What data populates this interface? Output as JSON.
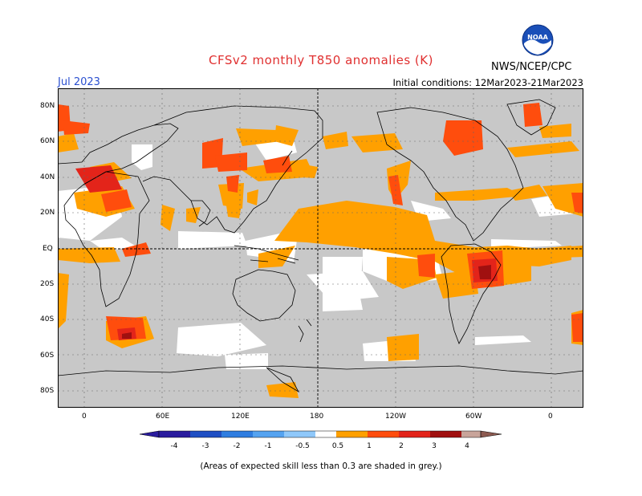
{
  "title": "CFSv2 monthly T850 anomalies (K)",
  "target_month": "Jul 2023",
  "initial_conditions": "Initial conditions: 12Mar2023-21Mar2023",
  "agency": "NWS/NCEP/CPC",
  "logo_text": "NOAA",
  "latitude_labels": [
    "80N",
    "60N",
    "40N",
    "20N",
    "EQ",
    "20S",
    "40S",
    "60S",
    "80S"
  ],
  "longitude_labels": [
    "0",
    "60E",
    "120E",
    "180",
    "120W",
    "60W",
    "0"
  ],
  "colorbar": {
    "tick_labels": [
      "-4",
      "-3",
      "-2",
      "-1",
      "-0.5",
      "0.5",
      "1",
      "2",
      "3",
      "4"
    ],
    "colors": [
      "#2a1c9e",
      "#1f4fc3",
      "#2f7de0",
      "#55a3f0",
      "#8fc8fa",
      "#ffffff",
      "#ffa000",
      "#ff4d0d",
      "#e3241a",
      "#a01010",
      "#c8a49a",
      "#8c5a50"
    ]
  },
  "map_colors": {
    "grey": "#c8c8c8",
    "white": "#ffffff",
    "orange": "#ffa000",
    "red_orange": "#ff4d0d",
    "red": "#e3241a",
    "dark_red": "#a01010"
  },
  "caption": "(Areas of expected skill less than 0.3 are shaded in grey.)"
}
